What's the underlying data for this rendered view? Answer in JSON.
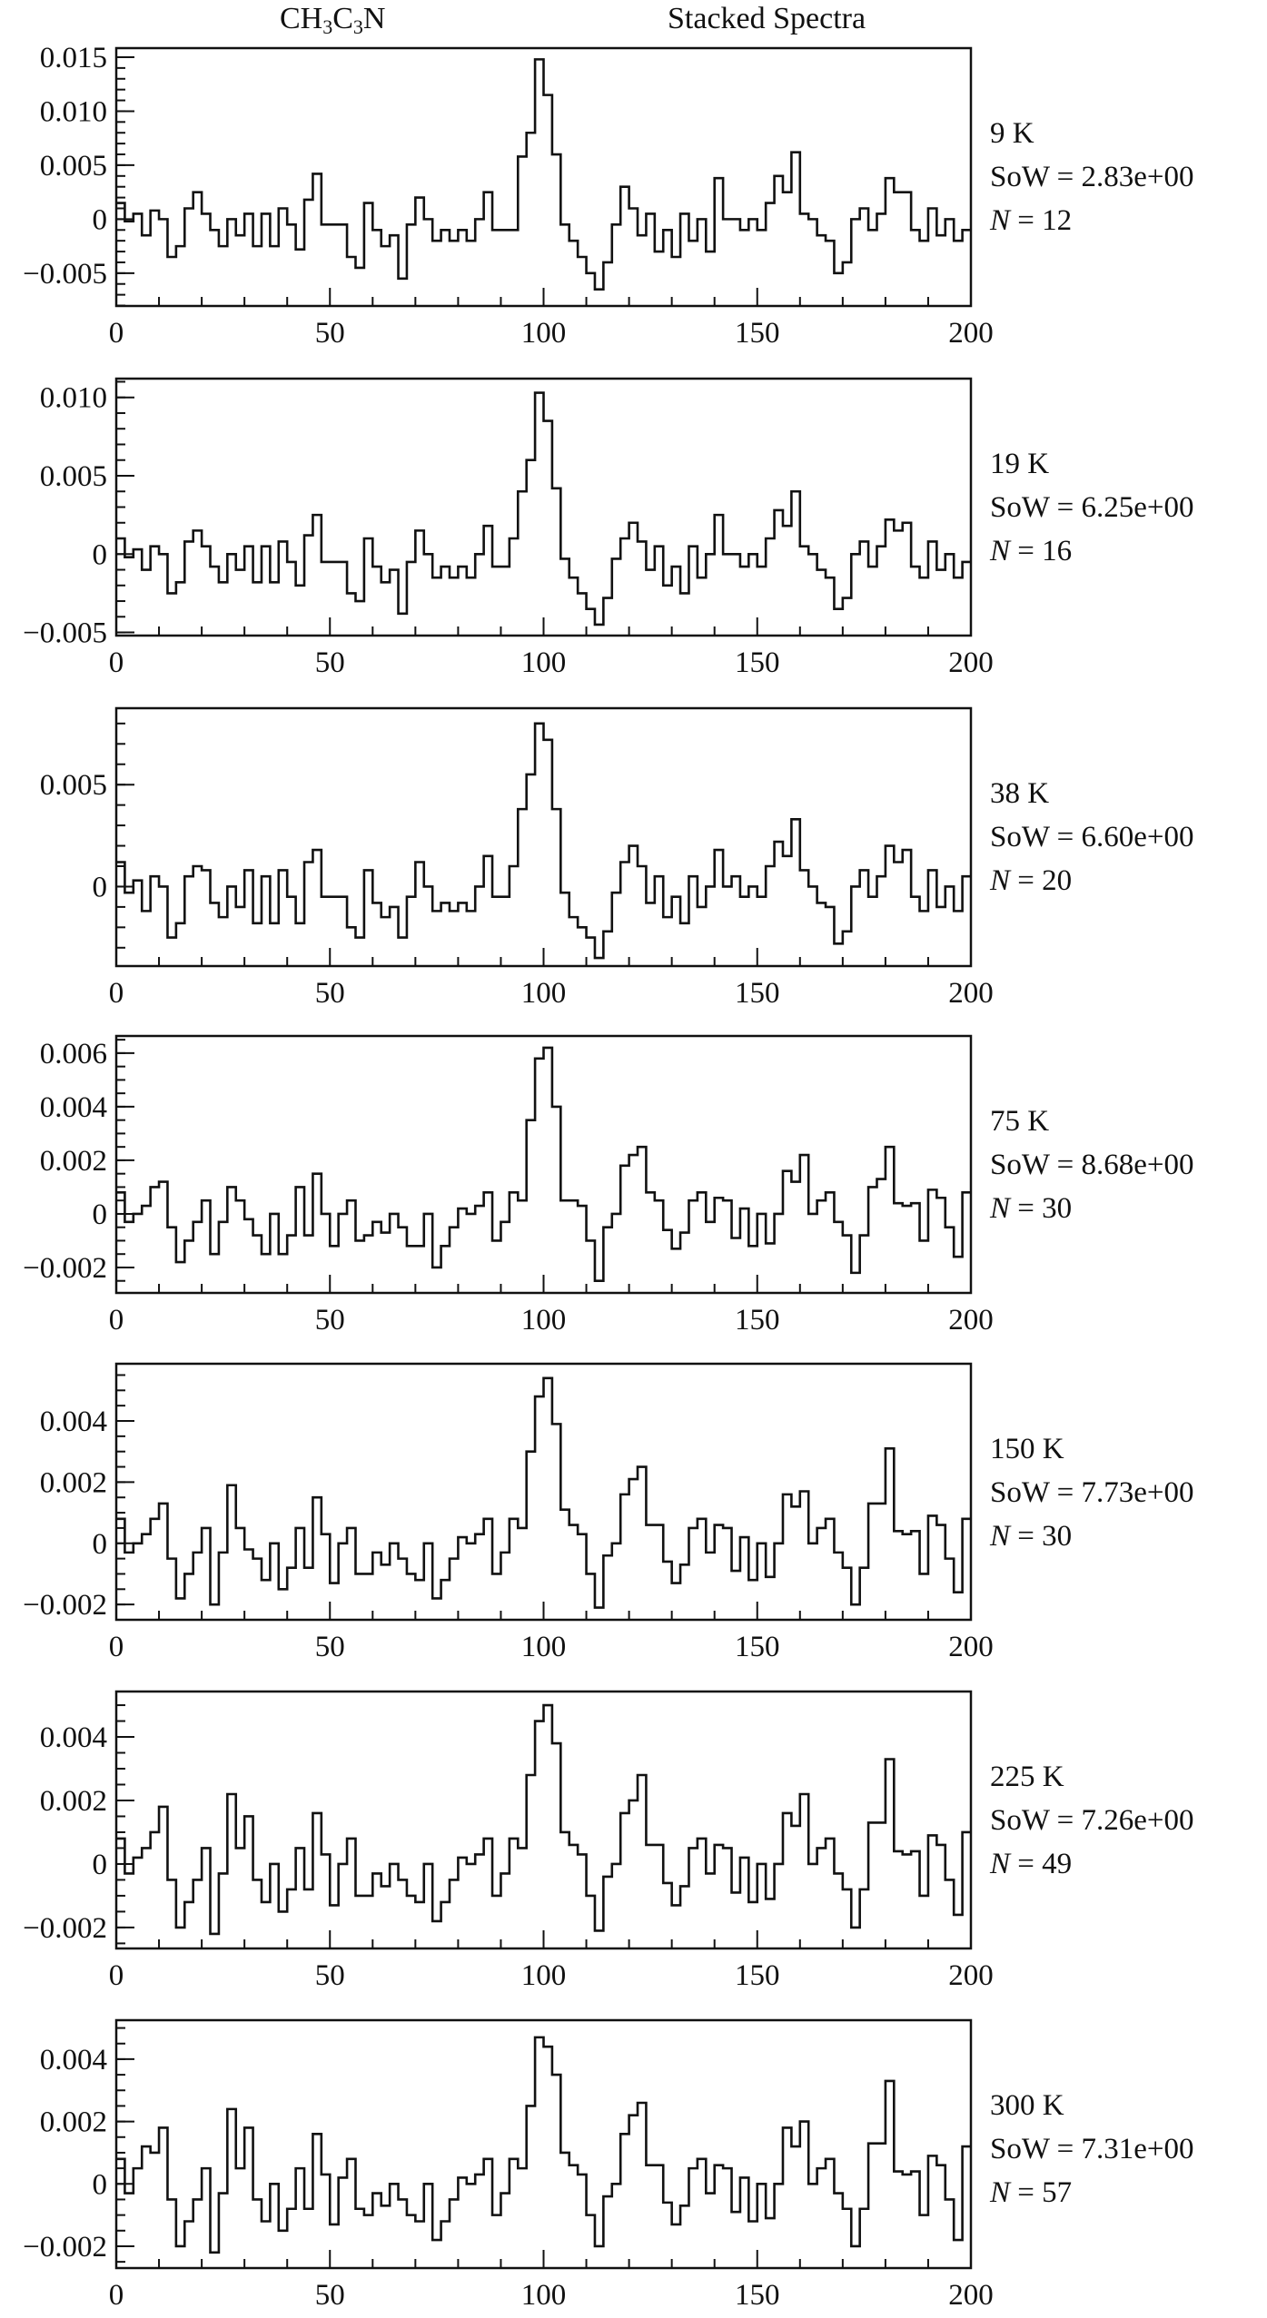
{
  "header": {
    "molecule_parts": [
      "CH",
      "3",
      "C",
      "3",
      "N"
    ],
    "title": "Stacked Spectra"
  },
  "labels": {
    "sow": "SoW",
    "n": "N",
    "eq": "="
  },
  "chart_data": [
    {
      "type": "line",
      "style": "step",
      "temperature": "9 K",
      "sow": "2.83e+00",
      "n": "12",
      "xlim": [
        0,
        200
      ],
      "xticks": [
        "0",
        "50",
        "100",
        "150",
        "200"
      ],
      "ylim": [
        -0.00804,
        0.01584
      ],
      "yticks": [
        0.015,
        0.01,
        0.005,
        0,
        -0.005
      ],
      "ytick_labels": [
        "0.015",
        "0.010",
        "0.005",
        "0",
        "−0.005"
      ],
      "yminor": 0.001,
      "bin_width": 2,
      "value_unit": 0.0001,
      "values": [
        15,
        -2,
        5,
        -15,
        8,
        0,
        -35,
        -25,
        10,
        25,
        5,
        -10,
        -25,
        0,
        -15,
        5,
        -25,
        5,
        -25,
        10,
        -5,
        -28,
        18,
        42,
        -5,
        -5,
        -5,
        -35,
        -45,
        15,
        -10,
        -25,
        -15,
        -55,
        -5,
        20,
        0,
        -20,
        -10,
        -20,
        -10,
        -20,
        0,
        25,
        -10,
        -10,
        -10,
        58,
        80,
        148,
        115,
        60,
        -5,
        -20,
        -35,
        -50,
        -65,
        -40,
        -5,
        30,
        10,
        -15,
        5,
        -30,
        -10,
        -35,
        5,
        -20,
        0,
        -30,
        38,
        0,
        0,
        -10,
        0,
        -10,
        15,
        40,
        25,
        62,
        5,
        0,
        -15,
        -20,
        -50,
        -40,
        0,
        10,
        -10,
        5,
        38,
        25,
        25,
        -10,
        -20,
        10,
        -15,
        0,
        -20,
        -10
      ]
    },
    {
      "type": "line",
      "style": "step",
      "temperature": "19 K",
      "sow": "6.25e+00",
      "n": "16",
      "xlim": [
        0,
        200
      ],
      "xticks": [
        "0",
        "50",
        "100",
        "150",
        "200"
      ],
      "ylim": [
        -0.0052,
        0.0112
      ],
      "yticks": [
        0.01,
        0.005,
        0,
        -0.005
      ],
      "ytick_labels": [
        "0.010",
        "0.005",
        "0",
        "−0.005"
      ],
      "yminor": 0.001,
      "bin_width": 2,
      "value_unit": 0.0001,
      "values": [
        10,
        -2,
        3,
        -10,
        5,
        0,
        -25,
        -18,
        8,
        15,
        5,
        -8,
        -18,
        0,
        -10,
        5,
        -18,
        5,
        -18,
        8,
        -5,
        -20,
        12,
        25,
        -5,
        -5,
        -5,
        -25,
        -30,
        10,
        -8,
        -18,
        -10,
        -38,
        -5,
        15,
        0,
        -15,
        -8,
        -15,
        -8,
        -15,
        0,
        18,
        -8,
        -8,
        10,
        40,
        60,
        103,
        85,
        42,
        -3,
        -15,
        -25,
        -35,
        -45,
        -28,
        -3,
        10,
        20,
        8,
        -10,
        5,
        -20,
        -8,
        -25,
        5,
        -15,
        0,
        25,
        0,
        0,
        -8,
        0,
        -8,
        10,
        28,
        18,
        40,
        5,
        0,
        -10,
        -15,
        -35,
        -28,
        0,
        8,
        -8,
        5,
        22,
        15,
        20,
        -8,
        -15,
        8,
        -10,
        0,
        -15,
        -5
      ]
    },
    {
      "type": "line",
      "style": "step",
      "temperature": "38 K",
      "sow": "6.60e+00",
      "n": "20",
      "xlim": [
        0,
        200
      ],
      "xticks": [
        "0",
        "50",
        "100",
        "150",
        "200"
      ],
      "ylim": [
        -0.0039,
        0.00875
      ],
      "yticks": [
        0.005,
        0
      ],
      "ytick_labels": [
        "0.005",
        "0"
      ],
      "yminor": 0.001,
      "bin_width": 2,
      "value_unit": 0.0001,
      "values": [
        12,
        -3,
        3,
        -12,
        5,
        0,
        -25,
        -18,
        5,
        10,
        8,
        -8,
        -15,
        0,
        -10,
        8,
        -18,
        5,
        -18,
        8,
        -5,
        -18,
        12,
        18,
        -5,
        -5,
        -5,
        -20,
        -25,
        8,
        -8,
        -15,
        -10,
        -25,
        -5,
        12,
        0,
        -12,
        -8,
        -12,
        -8,
        -12,
        0,
        15,
        -5,
        -5,
        10,
        38,
        55,
        80,
        72,
        38,
        -3,
        -15,
        -20,
        -25,
        -35,
        -22,
        -3,
        12,
        20,
        10,
        -8,
        5,
        -15,
        -5,
        -18,
        5,
        -10,
        0,
        18,
        0,
        5,
        -5,
        0,
        -5,
        10,
        22,
        15,
        33,
        8,
        0,
        -8,
        -10,
        -28,
        -22,
        0,
        8,
        -5,
        5,
        20,
        12,
        18,
        -5,
        -12,
        8,
        -10,
        0,
        -12,
        5
      ]
    },
    {
      "type": "line",
      "style": "step",
      "temperature": "75 K",
      "sow": "8.68e+00",
      "n": "30",
      "xlim": [
        0,
        200
      ],
      "xticks": [
        "0",
        "50",
        "100",
        "150",
        "200"
      ],
      "ylim": [
        -0.00295,
        0.00664
      ],
      "yticks": [
        0.006,
        0.004,
        0.002,
        0,
        -0.002
      ],
      "ytick_labels": [
        "0.006",
        "0.004",
        "0.002",
        "0",
        "−0.002"
      ],
      "yminor": 0.0005,
      "bin_width": 2,
      "value_unit": 0.0001,
      "values": [
        8,
        -3,
        0,
        3,
        10,
        12,
        -5,
        -18,
        -10,
        -3,
        5,
        -15,
        -3,
        10,
        5,
        -2,
        -8,
        -15,
        0,
        -15,
        -8,
        10,
        -8,
        15,
        0,
        -12,
        0,
        5,
        -10,
        -8,
        -3,
        -7,
        0,
        -5,
        -12,
        -12,
        0,
        -20,
        -12,
        -5,
        2,
        0,
        3,
        8,
        -10,
        -3,
        8,
        5,
        35,
        58,
        62,
        40,
        5,
        5,
        3,
        -10,
        -25,
        -5,
        0,
        18,
        22,
        25,
        8,
        5,
        -6,
        -13,
        -7,
        5,
        8,
        -3,
        6,
        5,
        -9,
        2,
        -12,
        0,
        -11,
        0,
        16,
        12,
        22,
        0,
        5,
        8,
        -3,
        -8,
        -22,
        -8,
        10,
        13,
        25,
        4,
        3,
        4,
        -10,
        9,
        6,
        -5,
        -16,
        8
      ]
    },
    {
      "type": "line",
      "style": "step",
      "temperature": "150 K",
      "sow": "7.73e+00",
      "n": "30",
      "xlim": [
        0,
        200
      ],
      "xticks": [
        "0",
        "50",
        "100",
        "150",
        "200"
      ],
      "ylim": [
        -0.0025,
        0.00587
      ],
      "yticks": [
        0.004,
        0.002,
        0,
        -0.002
      ],
      "ytick_labels": [
        "0.004",
        "0.002",
        "0",
        "−0.002"
      ],
      "yminor": 0.0005,
      "bin_width": 2,
      "value_unit": 0.0001,
      "values": [
        8,
        -3,
        0,
        3,
        8,
        13,
        -5,
        -18,
        -10,
        -3,
        5,
        -20,
        -3,
        19,
        5,
        -2,
        -5,
        -12,
        0,
        -15,
        -8,
        5,
        -8,
        15,
        3,
        -13,
        0,
        5,
        -10,
        -10,
        -3,
        -7,
        0,
        -5,
        -10,
        -12,
        0,
        -18,
        -12,
        -5,
        2,
        0,
        3,
        8,
        -10,
        -3,
        8,
        5,
        30,
        48,
        54,
        39,
        11,
        6,
        3,
        -10,
        -21,
        -4,
        0,
        16,
        21,
        25,
        6,
        6,
        -6,
        -13,
        -7,
        5,
        8,
        -3,
        6,
        5,
        -9,
        2,
        -12,
        0,
        -11,
        0,
        16,
        12,
        17,
        0,
        5,
        8,
        -3,
        -8,
        -20,
        -8,
        13,
        13,
        31,
        4,
        3,
        4,
        -10,
        9,
        6,
        -5,
        -16,
        8
      ]
    },
    {
      "type": "line",
      "style": "step",
      "temperature": "225 K",
      "sow": "7.26e+00",
      "n": "49",
      "xlim": [
        0,
        200
      ],
      "xticks": [
        "0",
        "50",
        "100",
        "150",
        "200"
      ],
      "ylim": [
        -0.00266,
        0.00543
      ],
      "yticks": [
        0.004,
        0.002,
        0,
        -0.002
      ],
      "ytick_labels": [
        "0.004",
        "0.002",
        "0",
        "−0.002"
      ],
      "yminor": 0.0005,
      "bin_width": 2,
      "value_unit": 0.0001,
      "values": [
        8,
        -3,
        2,
        5,
        10,
        18,
        -5,
        -20,
        -12,
        -5,
        5,
        -22,
        -3,
        22,
        5,
        15,
        -5,
        -12,
        0,
        -15,
        -8,
        5,
        -8,
        16,
        3,
        -13,
        0,
        8,
        -10,
        -10,
        -3,
        -7,
        0,
        -5,
        -10,
        -12,
        0,
        -18,
        -12,
        -5,
        2,
        0,
        3,
        8,
        -10,
        -3,
        8,
        5,
        28,
        45,
        50,
        38,
        10,
        6,
        3,
        -10,
        -21,
        -4,
        0,
        16,
        20,
        28,
        6,
        6,
        -6,
        -13,
        -7,
        5,
        8,
        -3,
        6,
        5,
        -9,
        2,
        -12,
        0,
        -11,
        0,
        16,
        12,
        22,
        0,
        5,
        8,
        -3,
        -8,
        -20,
        -8,
        13,
        13,
        33,
        4,
        3,
        4,
        -10,
        9,
        6,
        -5,
        -16,
        10
      ]
    },
    {
      "type": "line",
      "style": "step",
      "temperature": "300 K",
      "sow": "7.31e+00",
      "n": "57",
      "xlim": [
        0,
        200
      ],
      "xticks": [
        "0",
        "50",
        "100",
        "150",
        "200"
      ],
      "ylim": [
        -0.0027,
        0.00525
      ],
      "yticks": [
        0.004,
        0.002,
        0,
        -0.002
      ],
      "ytick_labels": [
        "0.004",
        "0.002",
        "0",
        "−0.002"
      ],
      "yminor": 0.0005,
      "bin_width": 2,
      "value_unit": 0.0001,
      "values": [
        8,
        -3,
        5,
        12,
        10,
        18,
        -5,
        -20,
        -12,
        -5,
        5,
        -22,
        -3,
        24,
        5,
        18,
        -5,
        -12,
        0,
        -15,
        -8,
        5,
        -8,
        16,
        3,
        -13,
        2,
        8,
        -8,
        -10,
        -3,
        -7,
        0,
        -5,
        -10,
        -12,
        0,
        -18,
        -12,
        -5,
        2,
        0,
        3,
        8,
        -10,
        -3,
        8,
        5,
        25,
        47,
        44,
        35,
        10,
        6,
        3,
        -10,
        -20,
        -4,
        0,
        16,
        22,
        26,
        6,
        6,
        -6,
        -13,
        -7,
        5,
        8,
        -3,
        6,
        5,
        -9,
        2,
        -12,
        0,
        -11,
        0,
        18,
        12,
        20,
        0,
        5,
        8,
        -3,
        -8,
        -20,
        -8,
        13,
        13,
        33,
        4,
        3,
        4,
        -10,
        9,
        6,
        -5,
        -18,
        12
      ]
    }
  ]
}
